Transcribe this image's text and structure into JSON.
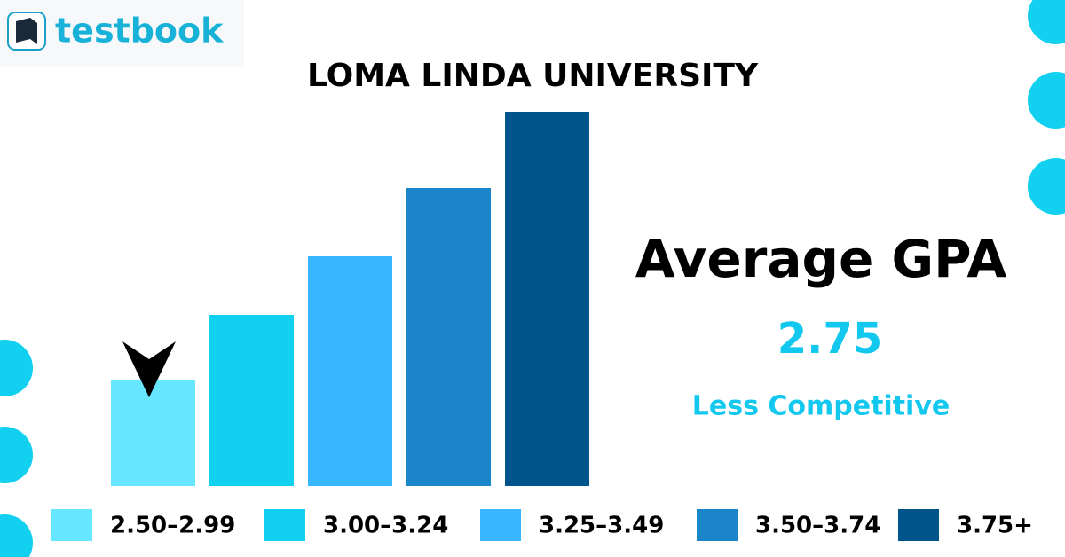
{
  "chart_data": {
    "type": "bar",
    "brand": "testbook",
    "title": "LOMA LINDA UNIVERSITY",
    "annotations": [
      "Average GPA",
      "2.75",
      "Less Competitive"
    ],
    "categories": [
      "2.50–2.99",
      "3.00–3.24",
      "3.25–3.49",
      "3.50–3.74",
      "3.75+"
    ],
    "values": [
      120,
      193,
      259,
      336,
      422
    ],
    "colors": [
      "#66e6ff",
      "#12d0f0",
      "#38b6ff",
      "#1a85c9",
      "#00548c"
    ],
    "ylim": [
      0,
      422
    ]
  }
}
